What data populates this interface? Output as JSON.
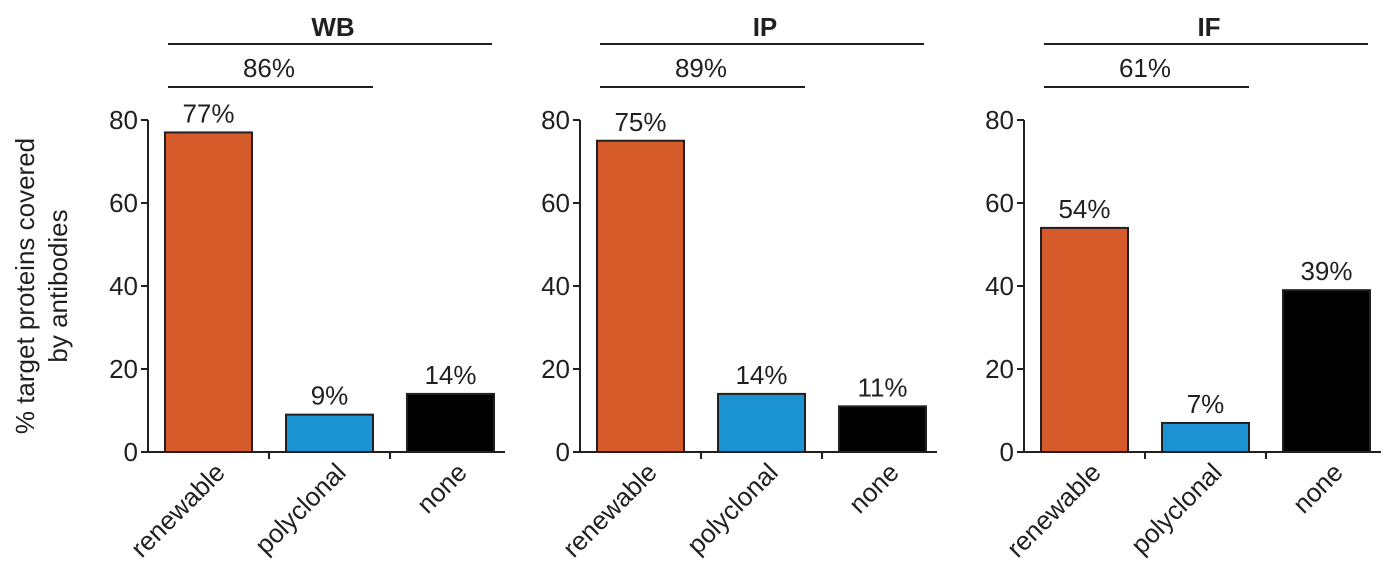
{
  "chart_data": {
    "type": "bar",
    "ylabel_lines": [
      "% target proteins covered",
      "by antibodies"
    ],
    "ylim": [
      0,
      80
    ],
    "yticks": [
      0,
      20,
      40,
      60,
      80
    ],
    "categories": [
      "renewable",
      "polyclonal",
      "none"
    ],
    "colors": {
      "renewable": "#d55b2b",
      "polyclonal": "#1c94d2",
      "none": "#000000"
    },
    "panels": [
      {
        "title": "WB",
        "values": [
          77,
          9,
          14
        ],
        "value_labels": [
          "77%",
          "9%",
          "14%"
        ],
        "bracket_label": "86%"
      },
      {
        "title": "IP",
        "values": [
          75,
          14,
          11
        ],
        "value_labels": [
          "75%",
          "14%",
          "11%"
        ],
        "bracket_label": "89%"
      },
      {
        "title": "IF",
        "values": [
          54,
          7,
          39
        ],
        "value_labels": [
          "54%",
          "7%",
          "39%"
        ],
        "bracket_label": "61%"
      }
    ]
  }
}
